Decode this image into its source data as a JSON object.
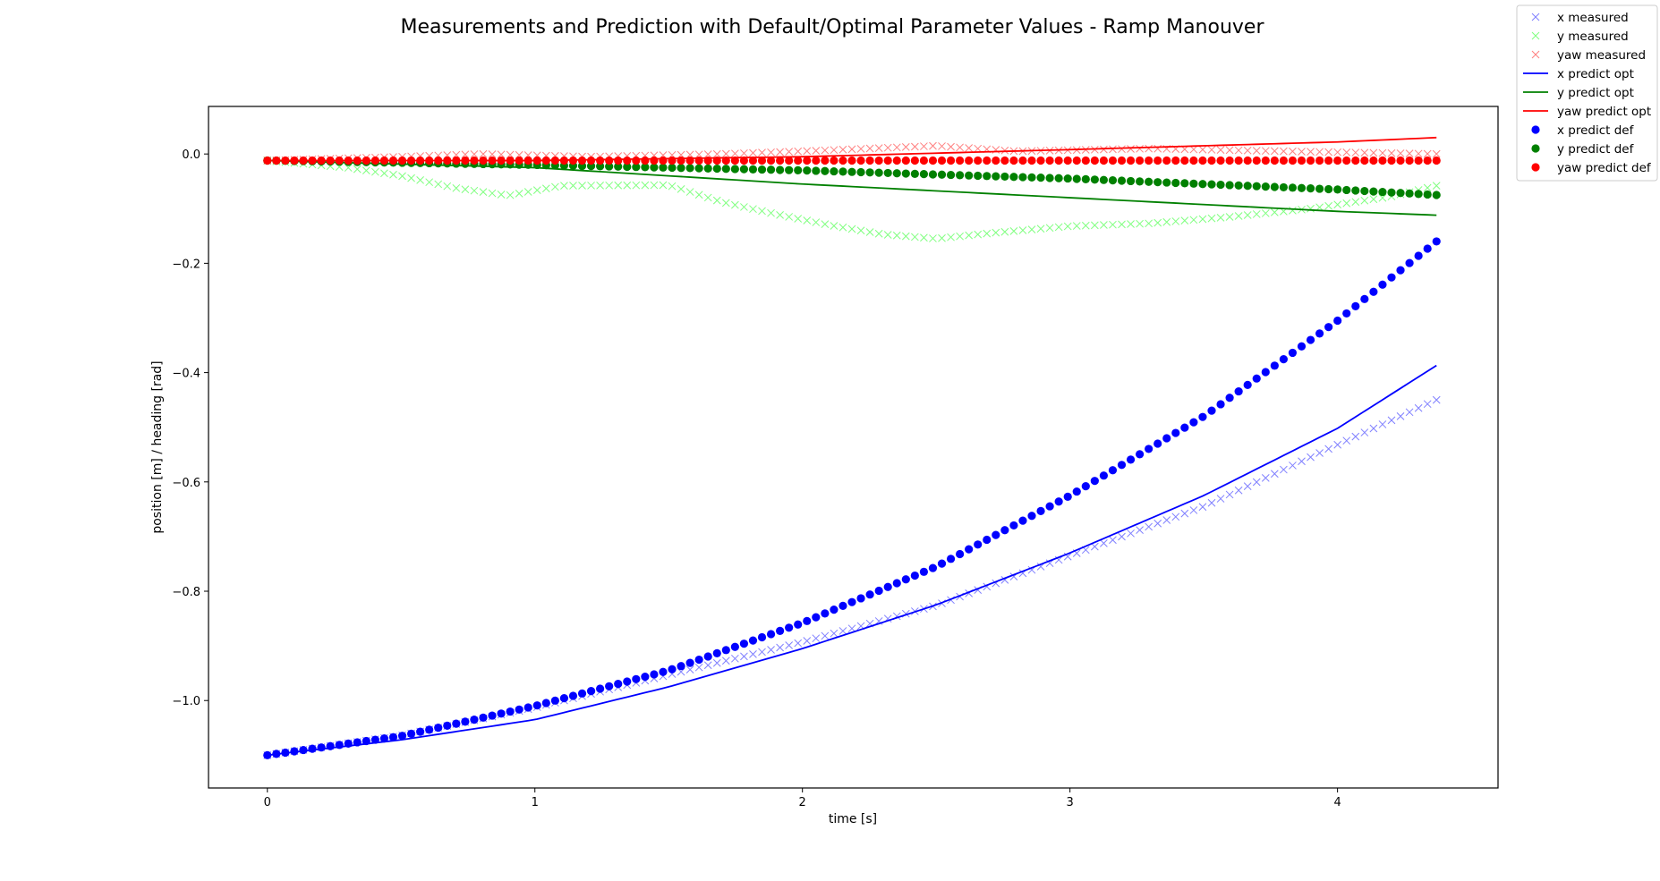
{
  "chart_data": {
    "type": "line",
    "title": "Measurements and Prediction with Default/Optimal Parameter Values - Ramp Manouver",
    "xlabel": "time [s]",
    "ylabel": "position [m] / heading [rad]",
    "xlim": [
      -0.22,
      4.6
    ],
    "ylim": [
      -1.16,
      0.087
    ],
    "xticks": [
      0,
      1,
      2,
      3,
      4
    ],
    "xtick_labels": [
      "0",
      "1",
      "2",
      "3",
      "4"
    ],
    "yticks": [
      0.0,
      -0.2,
      -0.4,
      -0.6,
      -0.8,
      -1.0
    ],
    "ytick_labels": [
      "0.0",
      "−0.2",
      "−0.4",
      "−0.6",
      "−0.8",
      "−1.0"
    ],
    "grid": false,
    "legend_position": "top-right outside",
    "sampling": {
      "t_start": 0,
      "t_end": 4.37,
      "n_points": 131
    },
    "series": [
      {
        "name": "x measured",
        "style": "x-marker",
        "color": "#0000ff",
        "alpha": 0.5,
        "key_t": [
          0,
          0.5,
          1,
          1.5,
          2,
          2.5,
          3,
          3.5,
          4,
          4.37
        ],
        "key_y": [
          -1.1,
          -1.064,
          -1.013,
          -0.953,
          -0.893,
          -0.826,
          -0.735,
          -0.645,
          -0.532,
          -0.45
        ]
      },
      {
        "name": "y measured",
        "style": "x-marker",
        "color": "#00ff00",
        "alpha": 0.5,
        "key_t": [
          0,
          0.3,
          0.5,
          0.7,
          0.9,
          1.1,
          1.5,
          1.7,
          1.9,
          2.1,
          2.3,
          2.5,
          2.7,
          3.0,
          3.3,
          3.6,
          3.9,
          4.2,
          4.37
        ],
        "key_y": [
          -0.012,
          -0.025,
          -0.04,
          -0.062,
          -0.076,
          -0.058,
          -0.057,
          -0.088,
          -0.11,
          -0.13,
          -0.147,
          -0.155,
          -0.145,
          -0.132,
          -0.127,
          -0.115,
          -0.1,
          -0.078,
          -0.058
        ]
      },
      {
        "name": "yaw measured",
        "style": "x-marker",
        "color": "#ff0000",
        "alpha": 0.5,
        "key_t": [
          0,
          0.5,
          0.8,
          1.2,
          1.7,
          2.0,
          2.5,
          2.8,
          3.3,
          3.8,
          4.37
        ],
        "key_y": [
          -0.012,
          -0.005,
          0.0,
          -0.005,
          0.0,
          0.005,
          0.015,
          0.005,
          0.01,
          0.005,
          0.0
        ]
      },
      {
        "name": "x predict opt",
        "style": "line",
        "color": "#0000ff",
        "key_t": [
          0,
          0.5,
          1,
          1.5,
          2,
          2.5,
          3,
          3.5,
          4,
          4.37
        ],
        "key_y": [
          -1.1,
          -1.072,
          -1.035,
          -0.975,
          -0.905,
          -0.825,
          -0.73,
          -0.625,
          -0.502,
          -0.387
        ]
      },
      {
        "name": "y predict opt",
        "style": "line",
        "color": "#008000",
        "key_t": [
          0,
          1,
          2,
          3,
          4,
          4.37
        ],
        "key_y": [
          -0.012,
          -0.025,
          -0.055,
          -0.08,
          -0.105,
          -0.112
        ]
      },
      {
        "name": "yaw predict opt",
        "style": "line",
        "color": "#ff0000",
        "key_t": [
          0,
          1,
          2,
          3,
          4,
          4.37
        ],
        "key_y": [
          -0.012,
          -0.012,
          -0.005,
          0.008,
          0.022,
          0.03
        ]
      },
      {
        "name": "x predict def",
        "style": "dot",
        "color": "#0000ff",
        "key_t": [
          0,
          0.5,
          1,
          1.5,
          2,
          2.5,
          3,
          3.5,
          4,
          4.37
        ],
        "key_y": [
          -1.1,
          -1.065,
          -1.01,
          -0.945,
          -0.858,
          -0.755,
          -0.625,
          -0.48,
          -0.305,
          -0.16
        ]
      },
      {
        "name": "y predict def",
        "style": "dot",
        "color": "#008000",
        "key_t": [
          0,
          1,
          2,
          3,
          4,
          4.37
        ],
        "key_y": [
          -0.012,
          -0.02,
          -0.03,
          -0.045,
          -0.065,
          -0.075
        ]
      },
      {
        "name": "yaw predict def",
        "style": "dot",
        "color": "#ff0000",
        "key_t": [
          0,
          4.37
        ],
        "key_y": [
          -0.012,
          -0.012
        ]
      }
    ]
  }
}
